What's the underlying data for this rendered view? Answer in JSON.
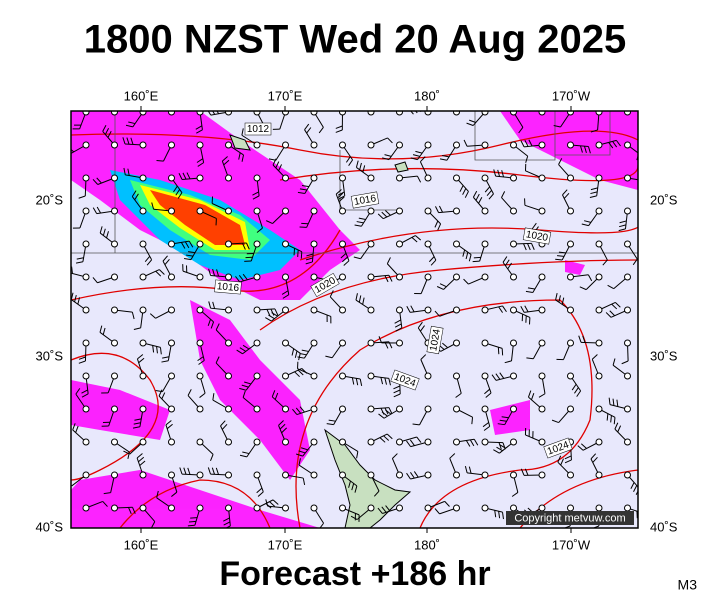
{
  "header": {
    "title": "1800 NZST Wed 20 Aug 2025"
  },
  "axes": {
    "lon_labels": [
      "160˚E",
      "170˚E",
      "180˚",
      "170˚W"
    ],
    "lat_labels": [
      "20˚S",
      "30˚S",
      "40˚S"
    ]
  },
  "isobar_labels": [
    "1012",
    "1016",
    "1020",
    "1016",
    "1020",
    "1024",
    "1024",
    "1024"
  ],
  "copyright": "Copyright metvuw.com",
  "footer": {
    "forecast": "Forecast +186 hr",
    "model": "M3"
  }
}
